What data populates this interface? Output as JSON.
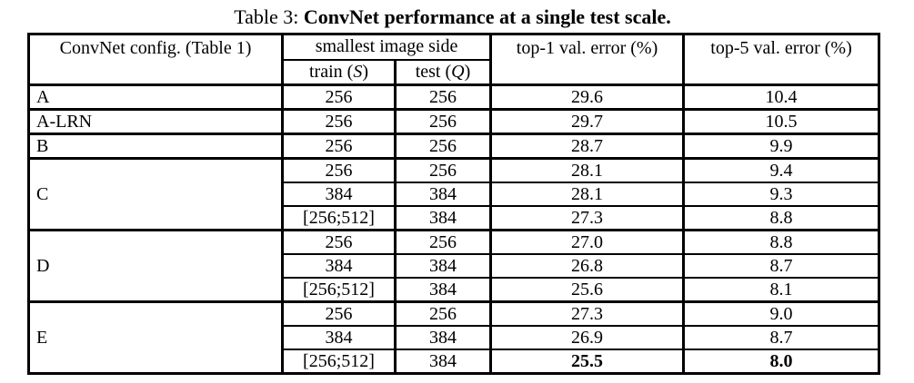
{
  "title": {
    "prefix": "Table 3: ",
    "emphasis": "ConvNet performance at a single test scale."
  },
  "table": {
    "header": {
      "config": "ConvNet config. (Table 1)",
      "group": "smallest image side",
      "train": {
        "prefix": "train (",
        "var": "S",
        "suffix": ")"
      },
      "test": {
        "prefix": "test (",
        "var": "Q",
        "suffix": ")"
      },
      "top1": "top-1 val. error (%)",
      "top5": "top-5 val. error (%)"
    },
    "groups": [
      {
        "config": "A",
        "rows": [
          {
            "train": "256",
            "test": "256",
            "top1": "29.6",
            "top5": "10.4"
          }
        ]
      },
      {
        "config": "A-LRN",
        "rows": [
          {
            "train": "256",
            "test": "256",
            "top1": "29.7",
            "top5": "10.5"
          }
        ]
      },
      {
        "config": "B",
        "rows": [
          {
            "train": "256",
            "test": "256",
            "top1": "28.7",
            "top5": "9.9"
          }
        ]
      },
      {
        "config": "C",
        "rows": [
          {
            "train": "256",
            "test": "256",
            "top1": "28.1",
            "top5": "9.4"
          },
          {
            "train": "384",
            "test": "384",
            "top1": "28.1",
            "top5": "9.3"
          },
          {
            "train": "[256;512]",
            "test": "384",
            "top1": "27.3",
            "top5": "8.8"
          }
        ]
      },
      {
        "config": "D",
        "rows": [
          {
            "train": "256",
            "test": "256",
            "top1": "27.0",
            "top5": "8.8"
          },
          {
            "train": "384",
            "test": "384",
            "top1": "26.8",
            "top5": "8.7"
          },
          {
            "train": "[256;512]",
            "test": "384",
            "top1": "25.6",
            "top5": "8.1"
          }
        ]
      },
      {
        "config": "E",
        "rows": [
          {
            "train": "256",
            "test": "256",
            "top1": "27.3",
            "top5": "9.0"
          },
          {
            "train": "384",
            "test": "384",
            "top1": "26.9",
            "top5": "8.7"
          },
          {
            "train": "[256;512]",
            "test": "384",
            "top1": "25.5",
            "top5": "8.0",
            "bold": [
              "top1",
              "top5"
            ]
          }
        ]
      }
    ]
  },
  "colors": {
    "text": "#000000",
    "border": "#000000",
    "background": "#ffffff"
  }
}
